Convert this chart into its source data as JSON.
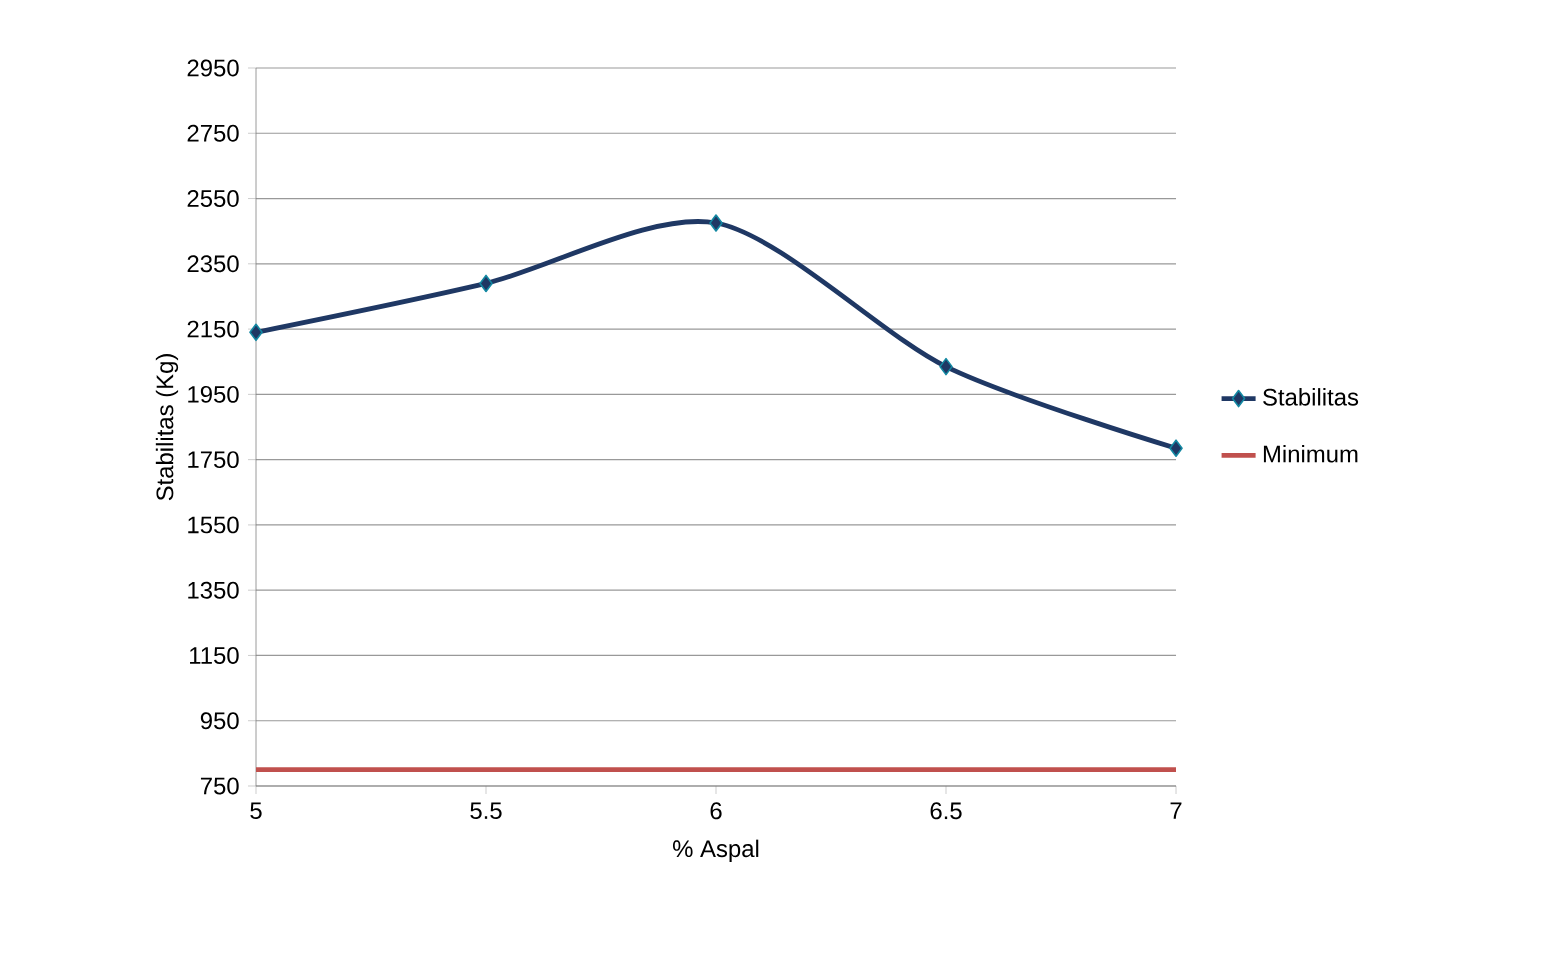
{
  "chart_data": {
    "type": "line",
    "xlabel": "% Aspal",
    "ylabel": "Stabilitas (Kg)",
    "x": [
      5,
      5.5,
      6,
      6.5,
      7
    ],
    "series": [
      {
        "name": "Stabilitas",
        "color": "#1f3864",
        "marker": "diamond",
        "values": [
          2140,
          2290,
          2475,
          2035,
          1785
        ]
      },
      {
        "name": "Minimum",
        "color": "#c0504d",
        "marker": "none",
        "values": [
          800,
          800,
          800,
          800,
          800
        ]
      }
    ],
    "xlim": [
      5,
      7
    ],
    "xticks": [
      5,
      5.5,
      6,
      6.5,
      7
    ],
    "ylim": [
      750,
      2950
    ],
    "yticks": [
      750,
      950,
      1150,
      1350,
      1550,
      1750,
      1950,
      2150,
      2350,
      2550,
      2750,
      2950
    ],
    "grid": "y",
    "legend": "right"
  }
}
